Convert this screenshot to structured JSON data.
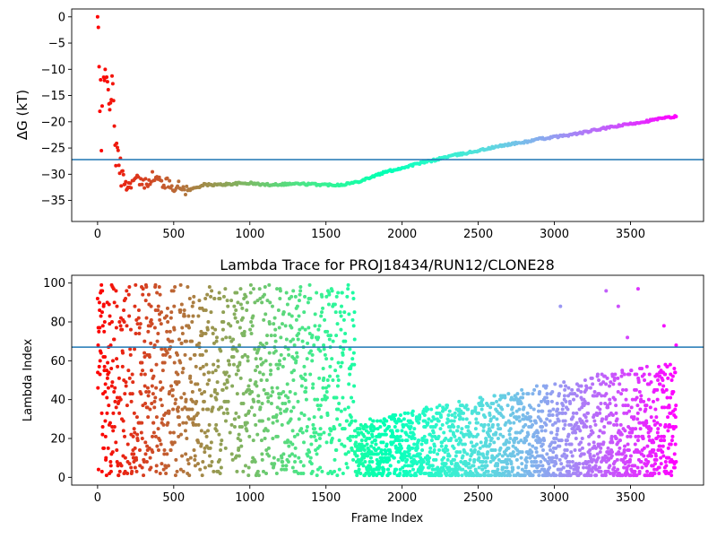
{
  "chart_data": [
    {
      "type": "scatter",
      "title": "",
      "xlabel": "",
      "ylabel": "ΔG (kT)",
      "xlim": [
        -170,
        3980
      ],
      "ylim": [
        -39,
        1.5
      ],
      "xticks": [
        0,
        500,
        1000,
        1500,
        2000,
        2500,
        3000,
        3500
      ],
      "yticks": [
        0,
        -5,
        -10,
        -15,
        -20,
        -25,
        -30,
        -35
      ],
      "colormap": "rainbow",
      "color_encodes": "Frame Index",
      "reference_line": {
        "y": -27.2,
        "color": "#1f77b4"
      },
      "series": [
        {
          "x": [
            0,
            5,
            10,
            15,
            20,
            25,
            30
          ],
          "y": [
            0,
            -2,
            -9.5,
            -18,
            -12,
            -25.5,
            -17
          ]
        },
        {
          "x": [
            40,
            60,
            80,
            100,
            120,
            140,
            160,
            180,
            200,
            220,
            260,
            300,
            360,
            420,
            480,
            540,
            600,
            700,
            800,
            900,
            1000,
            1100,
            1200,
            1300,
            1400,
            1500,
            1600,
            1700,
            1800,
            1900,
            2000,
            2100,
            2200,
            2300,
            2400,
            2500,
            2600,
            2700,
            2800,
            2900,
            3000,
            3100,
            3200,
            3300,
            3400,
            3500,
            3600,
            3700,
            3800
          ],
          "y": [
            -12,
            -13,
            -15,
            -14,
            -26,
            -28,
            -30,
            -31.5,
            -32.5,
            -31.5,
            -31,
            -32,
            -30.5,
            -31.5,
            -32,
            -32.5,
            -33,
            -32,
            -32,
            -31.8,
            -31.7,
            -32,
            -31.9,
            -31.8,
            -31.9,
            -32,
            -32,
            -31.5,
            -30.5,
            -29.5,
            -28.8,
            -28,
            -27.4,
            -26.6,
            -26.1,
            -25.5,
            -24.9,
            -24.3,
            -23.9,
            -23.3,
            -22.9,
            -22.5,
            -22,
            -21.4,
            -20.9,
            -20.4,
            -19.9,
            -19.4,
            -19
          ]
        }
      ]
    },
    {
      "type": "scatter",
      "title": "Lambda Trace for PROJ18434/RUN12/CLONE28",
      "xlabel": "Frame Index",
      "ylabel": "Lambda Index",
      "xlim": [
        -170,
        3980
      ],
      "ylim": [
        -4,
        104
      ],
      "xticks": [
        0,
        500,
        1000,
        1500,
        2000,
        2500,
        3000,
        3500
      ],
      "yticks": [
        0,
        20,
        40,
        60,
        80,
        100
      ],
      "colormap": "rainbow",
      "color_encodes": "Frame Index",
      "reference_line": {
        "y": 67,
        "color": "#1f77b4"
      },
      "phases": [
        {
          "x_range": [
            0,
            1690
          ],
          "lambda_range": [
            1,
            99
          ],
          "distribution": "uniform"
        },
        {
          "x_range": [
            1690,
            3800
          ],
          "lambda_range": [
            1,
            60
          ],
          "distribution": "skewed-low"
        }
      ],
      "notable_points": [
        {
          "x": 3040,
          "y": 88
        },
        {
          "x": 3340,
          "y": 96
        },
        {
          "x": 3420,
          "y": 88
        },
        {
          "x": 3480,
          "y": 72
        },
        {
          "x": 3550,
          "y": 97
        },
        {
          "x": 3720,
          "y": 78
        },
        {
          "x": 3800,
          "y": 68
        }
      ]
    }
  ]
}
